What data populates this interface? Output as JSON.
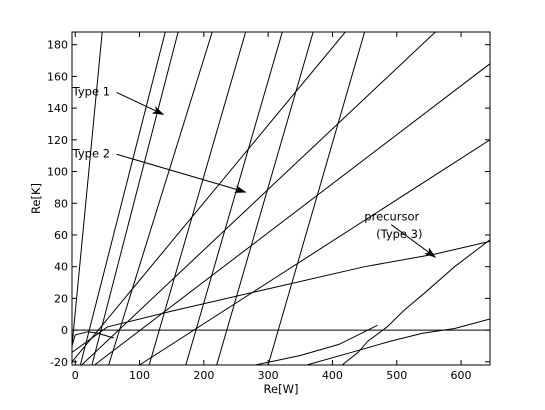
{
  "chart_data": {
    "type": "line",
    "title": "",
    "xlabel": "Re[W]",
    "ylabel": "Re[K]",
    "xlim": [
      -5,
      645
    ],
    "ylim": [
      -22,
      188
    ],
    "xticks": [
      0,
      100,
      200,
      300,
      400,
      500,
      600
    ],
    "yticks": [
      -20,
      0,
      20,
      40,
      60,
      80,
      100,
      120,
      140,
      160,
      180
    ],
    "grid": false,
    "legend": "none",
    "series": [
      {
        "x": [
          -5,
          42
        ],
        "y": [
          -10,
          188
        ]
      },
      {
        "x": [
          8,
          140
        ],
        "y": [
          -22,
          188
        ]
      },
      {
        "x": [
          26,
          160
        ],
        "y": [
          -22,
          188
        ]
      },
      {
        "x": [
          52,
          213
        ],
        "y": [
          -22,
          188
        ]
      },
      {
        "x": [
          115,
          265
        ],
        "y": [
          -22,
          188
        ]
      },
      {
        "x": [
          172,
          322
        ],
        "y": [
          -22,
          188
        ]
      },
      {
        "x": [
          220,
          370
        ],
        "y": [
          -22,
          188
        ]
      },
      {
        "x": [
          300,
          450
        ],
        "y": [
          -22,
          188
        ]
      },
      {
        "x": [
          -5,
          420
        ],
        "y": [
          -20,
          188
        ]
      },
      {
        "x": [
          10,
          560
        ],
        "y": [
          -22,
          188
        ]
      },
      {
        "x": [
          30,
          645
        ],
        "y": [
          -22,
          168
        ]
      },
      {
        "x": [
          100,
          645
        ],
        "y": [
          -22,
          120
        ]
      },
      {
        "x": [
          -5,
          50,
          150,
          300,
          450,
          560,
          645
        ],
        "y": [
          -14,
          2,
          12,
          26,
          40,
          48,
          56
        ]
      },
      {
        "x": [
          -5,
          645
        ],
        "y": [
          0,
          0
        ]
      },
      {
        "x": [
          -5,
          0,
          20,
          35,
          60
        ],
        "y": [
          -10,
          -3,
          -1,
          -2,
          -5
        ]
      },
      {
        "x": [
          415,
          440,
          455,
          485,
          510,
          545,
          590,
          645
        ],
        "y": [
          -22,
          -14,
          -7,
          2,
          12,
          24,
          40,
          57
        ]
      },
      {
        "x": [
          280,
          350,
          410,
          445,
          470
        ],
        "y": [
          -22,
          -16,
          -9,
          -2,
          3
        ]
      },
      {
        "x": [
          360,
          430,
          490,
          540,
          590,
          645
        ],
        "y": [
          -22,
          -14,
          -7,
          -2,
          1,
          7
        ]
      }
    ],
    "annotations": [
      {
        "text": "Type 1",
        "label_x": -4,
        "label_y": 148,
        "arrow_to": [
          137,
          136
        ]
      },
      {
        "text": "Type 2",
        "label_x": -4,
        "label_y": 109,
        "arrow_to": [
          265,
          87
        ]
      },
      {
        "text": "precursor",
        "label_x": 535,
        "label_y": 69,
        "arrow_to": [
          560,
          46
        ]
      },
      {
        "text": "(Type 3)",
        "label_x": 540,
        "label_y": 58,
        "arrow_to": null
      }
    ]
  }
}
